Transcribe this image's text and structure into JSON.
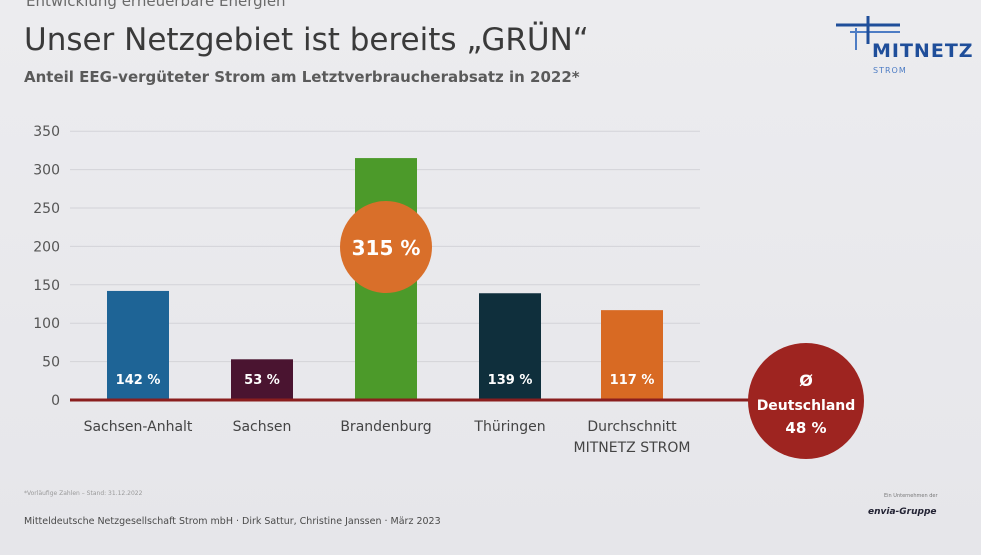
{
  "header": {
    "kicker": "Entwicklung erneuerbare Energien",
    "title": "Unser Netzgebiet ist bereits „GRÜN“",
    "subtitle": "Anteil EEG-vergüteter Strom am Letztverbraucherabsatz in 2022*"
  },
  "logo": {
    "name": "MITNETZ",
    "sub": "STROM",
    "icon": "mitnetz-logo-icon"
  },
  "footer": {
    "footnote": "*Vorläufige Zahlen – Stand: 31.12.2022",
    "credit": "Mitteldeutsche Netzgesellschaft Strom mbH · Dirk Sattur, Christine Janssen · März 2023",
    "group_small": "Ein Unternehmen der",
    "group_logo": "envia-Gruppe"
  },
  "chart_data": {
    "type": "bar",
    "categories": [
      "Sachsen-Anhalt",
      "Sachsen",
      "Brandenburg",
      "Thüringen",
      "Durchschnitt MITNETZ STROM"
    ],
    "values": [
      142,
      53,
      315,
      139,
      117
    ],
    "data_labels": [
      "142 %",
      "53 %",
      "315 %",
      "139 %",
      "117 %"
    ],
    "colors": [
      "#1e6496",
      "#4a1430",
      "#4c9a2a",
      "#0f2f3c",
      "#d86a23"
    ],
    "ylim": [
      0,
      350
    ],
    "yticks": [
      0,
      50,
      100,
      150,
      200,
      250,
      300,
      350
    ],
    "grid": true,
    "callout": {
      "title": "Ø",
      "label": "Deutschland",
      "value": "48 %",
      "color": "#9e2420"
    },
    "highlight_color": "#d96f2a",
    "baseline_color": "#8a1e1e"
  }
}
